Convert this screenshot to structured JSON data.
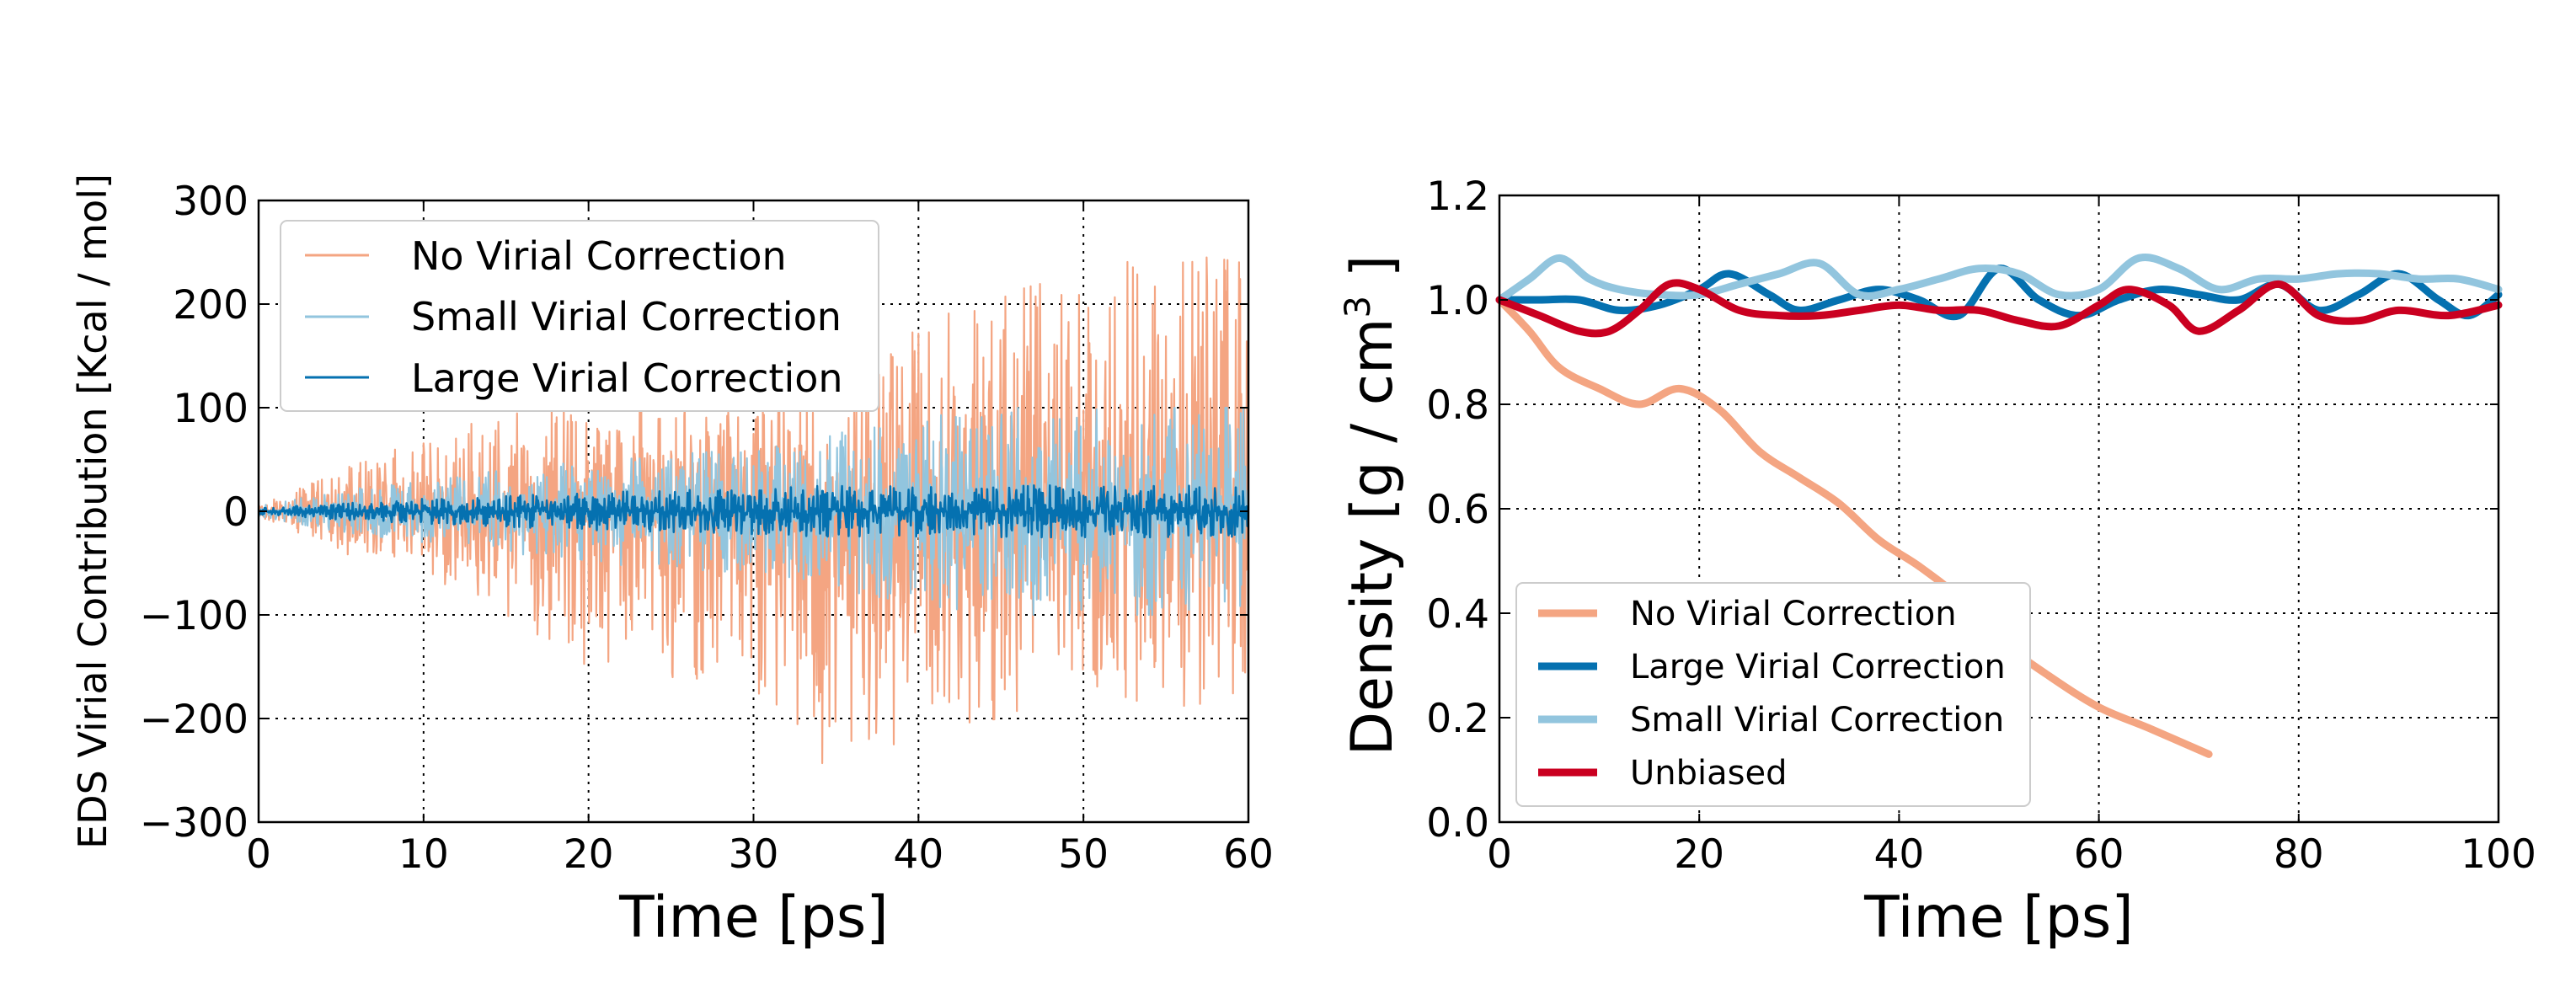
{
  "chart_data": [
    {
      "type": "line",
      "xlabel": "Time [ps]",
      "ylabel": "EDS Virial Contribution [Kcal / mol]",
      "xlim": [
        0,
        60
      ],
      "ylim": [
        -300,
        300
      ],
      "xticks": [
        "0",
        "10",
        "20",
        "30",
        "40",
        "50",
        "60"
      ],
      "yticks": [
        "300",
        "200",
        "100",
        "0",
        "−100",
        "−200",
        "−300"
      ],
      "grid": true,
      "legend_position": "top-left",
      "series": [
        {
          "name": "No Virial Correction",
          "color": "#f4a582",
          "x": [
            0,
            5,
            10,
            15,
            20,
            25,
            30,
            35,
            40,
            45,
            50,
            55,
            60
          ],
          "upper": [
            5,
            40,
            70,
            95,
            100,
            100,
            100,
            110,
            180,
            210,
            230,
            250,
            240
          ],
          "lower": [
            -5,
            -40,
            -60,
            -100,
            -150,
            -160,
            -170,
            -260,
            -210,
            -200,
            -170,
            -190,
            -180
          ]
        },
        {
          "name": "Small Virial Correction",
          "color": "#92c5de",
          "x": [
            0,
            5,
            10,
            15,
            20,
            25,
            30,
            35,
            40,
            45,
            50,
            55,
            60
          ],
          "upper": [
            5,
            20,
            30,
            40,
            50,
            55,
            60,
            75,
            90,
            100,
            100,
            100,
            100
          ],
          "lower": [
            -5,
            -20,
            -30,
            -40,
            -50,
            -55,
            -60,
            -75,
            -90,
            -100,
            -100,
            -100,
            -100
          ]
        },
        {
          "name": "Large Virial Correction",
          "color": "#0571b0",
          "x": [
            0,
            5,
            10,
            15,
            20,
            25,
            30,
            35,
            40,
            45,
            50,
            55,
            60
          ],
          "upper": [
            3,
            8,
            12,
            15,
            18,
            20,
            22,
            25,
            25,
            25,
            25,
            25,
            25
          ],
          "lower": [
            -3,
            -8,
            -12,
            -15,
            -18,
            -20,
            -22,
            -25,
            -25,
            -25,
            -25,
            -25,
            -25
          ]
        }
      ]
    },
    {
      "type": "line",
      "xlabel": "Time [ps]",
      "ylabel": "Density [g / cm",
      "ylabel_superscript": "3",
      "ylabel_suffix": " ]",
      "xlim": [
        0,
        100
      ],
      "ylim": [
        0.0,
        1.2
      ],
      "xticks": [
        "0",
        "20",
        "40",
        "60",
        "80",
        "100"
      ],
      "yticks": [
        "1.2",
        "1.0",
        "0.8",
        "0.6",
        "0.4",
        "0.2",
        "0.0"
      ],
      "grid": true,
      "legend_position": "bottom-left",
      "series": [
        {
          "name": "No Virial Correction",
          "color": "#f4a582",
          "x": [
            0,
            3,
            6,
            10,
            14,
            18,
            22,
            26,
            30,
            34,
            38,
            42,
            46,
            50,
            55,
            60,
            65,
            71
          ],
          "y": [
            1.0,
            0.94,
            0.87,
            0.83,
            0.8,
            0.83,
            0.79,
            0.71,
            0.66,
            0.61,
            0.54,
            0.49,
            0.43,
            0.35,
            0.28,
            0.22,
            0.18,
            0.13
          ]
        },
        {
          "name": "Large Virial Correction",
          "color": "#0571b0",
          "x": [
            0,
            4,
            8,
            12,
            16,
            20,
            23,
            27,
            30,
            34,
            38,
            42,
            46,
            50,
            54,
            58,
            62,
            66,
            70,
            74,
            78,
            82,
            86,
            90,
            94,
            97,
            100
          ],
          "y": [
            1.0,
            1.0,
            1.0,
            0.98,
            0.99,
            1.02,
            1.05,
            1.01,
            0.98,
            1.0,
            1.02,
            1.0,
            0.97,
            1.06,
            1.0,
            0.97,
            1.0,
            1.02,
            1.01,
            1.0,
            1.03,
            0.98,
            1.01,
            1.05,
            1.0,
            0.97,
            1.01
          ]
        },
        {
          "name": "Small Virial Correction",
          "color": "#92c5de",
          "x": [
            0,
            3,
            6,
            9,
            12,
            16,
            20,
            24,
            28,
            32,
            36,
            40,
            44,
            48,
            52,
            56,
            60,
            64,
            68,
            72,
            76,
            80,
            84,
            88,
            92,
            96,
            100
          ],
          "y": [
            1.0,
            1.04,
            1.08,
            1.04,
            1.02,
            1.01,
            1.01,
            1.03,
            1.05,
            1.07,
            1.01,
            1.02,
            1.04,
            1.06,
            1.05,
            1.01,
            1.02,
            1.08,
            1.06,
            1.02,
            1.04,
            1.04,
            1.05,
            1.05,
            1.04,
            1.04,
            1.02
          ]
        },
        {
          "name": "Unbiased",
          "color": "#ca0020",
          "x": [
            0,
            4,
            8,
            11,
            14,
            17,
            20,
            24,
            28,
            32,
            36,
            40,
            44,
            48,
            52,
            56,
            60,
            63,
            67,
            70,
            74,
            78,
            82,
            86,
            90,
            95,
            100
          ],
          "y": [
            1.0,
            0.97,
            0.94,
            0.94,
            0.98,
            1.03,
            1.02,
            0.98,
            0.97,
            0.97,
            0.98,
            0.99,
            0.98,
            0.98,
            0.96,
            0.95,
            0.99,
            1.02,
            0.99,
            0.94,
            0.98,
            1.03,
            0.97,
            0.96,
            0.98,
            0.97,
            0.99
          ]
        }
      ]
    }
  ]
}
